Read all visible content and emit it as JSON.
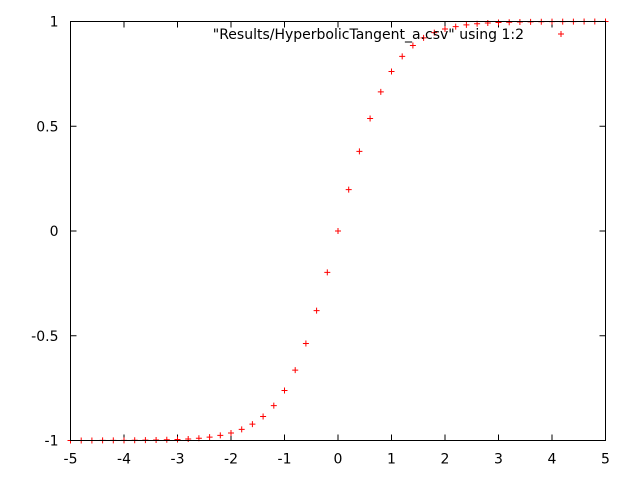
{
  "chart_data": {
    "type": "scatter",
    "title": "",
    "xlabel": "",
    "ylabel": "",
    "xlim": [
      -5,
      5
    ],
    "ylim": [
      -1,
      1
    ],
    "x_ticks": [
      -5,
      -4,
      -3,
      -2,
      -1,
      0,
      1,
      2,
      3,
      4,
      5
    ],
    "x_tick_labels": [
      "-5",
      "-4",
      "-3",
      "-2",
      "-1",
      "0",
      "1",
      "2",
      "3",
      "4",
      "5"
    ],
    "y_ticks": [
      -1,
      -0.5,
      0,
      0.5,
      1
    ],
    "y_tick_labels": [
      "-1",
      "-0.5",
      "0",
      "0.5",
      "1"
    ],
    "grid": false,
    "legend_position": "top-right",
    "series": [
      {
        "name": "\"Results/HyperbolicTangent_a.csv\" using 1:2",
        "color": "#ff0000",
        "marker": "plus",
        "x": [
          -5.0,
          -4.8,
          -4.6,
          -4.4,
          -4.2,
          -4.0,
          -3.8,
          -3.6,
          -3.4,
          -3.2,
          -3.0,
          -2.8,
          -2.6,
          -2.4,
          -2.2,
          -2.0,
          -1.8,
          -1.6,
          -1.4,
          -1.2,
          -1.0,
          -0.8,
          -0.6,
          -0.4,
          -0.2,
          0.0,
          0.2,
          0.4,
          0.6,
          0.8,
          1.0,
          1.2,
          1.4,
          1.6,
          1.8,
          2.0,
          2.2,
          2.4,
          2.6,
          2.8,
          3.0,
          3.2,
          3.4,
          3.6,
          3.8,
          4.0,
          4.2,
          4.4,
          4.6,
          4.8,
          5.0
        ],
        "y": [
          -0.9999,
          -0.9999,
          -0.9998,
          -0.9997,
          -0.9996,
          -0.9993,
          -0.999,
          -0.9985,
          -0.9978,
          -0.9967,
          -0.9951,
          -0.9926,
          -0.989,
          -0.9837,
          -0.9757,
          -0.964,
          -0.9468,
          -0.9217,
          -0.8854,
          -0.8337,
          -0.7616,
          -0.664,
          -0.537,
          -0.3799,
          -0.1974,
          0.0,
          0.1974,
          0.3799,
          0.537,
          0.664,
          0.7616,
          0.8337,
          0.8854,
          0.9217,
          0.9468,
          0.964,
          0.9757,
          0.9837,
          0.989,
          0.9926,
          0.9951,
          0.9967,
          0.9978,
          0.9985,
          0.999,
          0.9993,
          0.9996,
          0.9997,
          0.9998,
          0.9999,
          0.9999
        ]
      }
    ]
  }
}
